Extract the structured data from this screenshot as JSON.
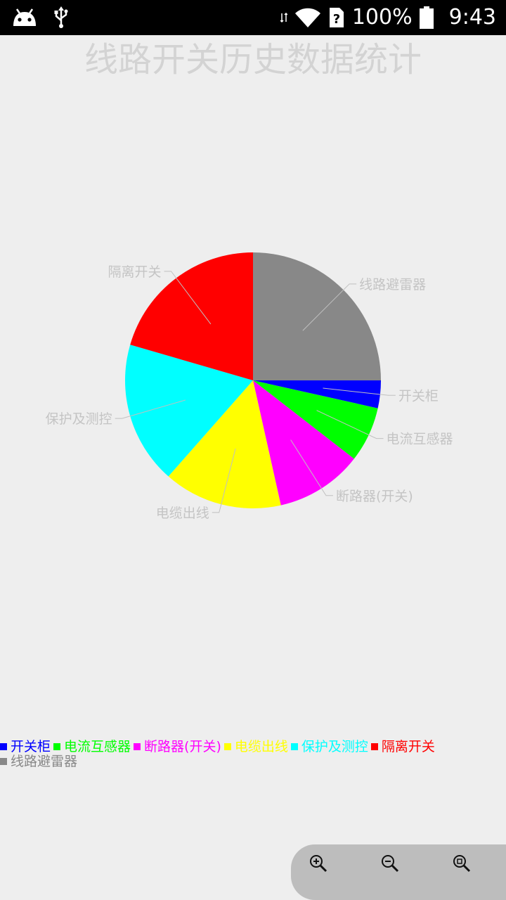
{
  "status_bar": {
    "icons": [
      "android-icon",
      "usb-icon",
      "signal-arrows-icon",
      "wifi-icon",
      "sim-unknown-icon",
      "battery-icon"
    ],
    "battery": "100%",
    "time": "9:43"
  },
  "chart_data": {
    "type": "pie",
    "title": "线路开关历史数据统计",
    "start_angle_deg": 0,
    "direction": "clockwise",
    "legend_placement": "bottom-left",
    "slices": [
      {
        "label": "开关柜",
        "value": 3.5,
        "color": "#0000ff"
      },
      {
        "label": "电流互感器",
        "value": 7,
        "color": "#00ff00"
      },
      {
        "label": "断路器(开关)",
        "value": 11,
        "color": "#ff00ff"
      },
      {
        "label": "电缆出线",
        "value": 15,
        "color": "#ffff00"
      },
      {
        "label": "保护及测控",
        "value": 18,
        "color": "#00ffff"
      },
      {
        "label": "隔离开关",
        "value": 20.5,
        "color": "#ff0000"
      },
      {
        "label": "线路避雷器",
        "value": 25,
        "color": "#888888"
      }
    ]
  },
  "zoom_controls": {
    "buttons": [
      "zoom-in-icon",
      "zoom-out-icon",
      "zoom-reset-icon"
    ]
  }
}
